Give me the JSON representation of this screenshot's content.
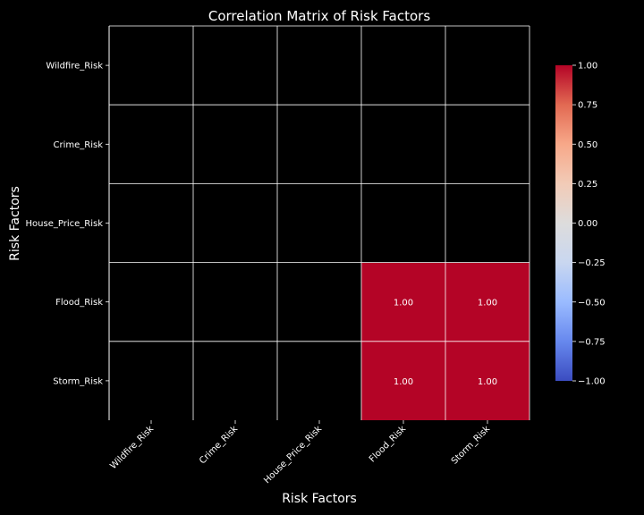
{
  "chart_data": {
    "type": "heatmap",
    "title": "Correlation Matrix of Risk Factors",
    "xlabel": "Risk Factors",
    "ylabel": "Risk Factors",
    "row_labels": [
      "Wildfire_Risk",
      "Crime_Risk",
      "House_Price_Risk",
      "Flood_Risk",
      "Storm_Risk"
    ],
    "col_labels": [
      "Wildfire_Risk",
      "Crime_Risk",
      "House_Price_Risk",
      "Flood_Risk",
      "Storm_Risk"
    ],
    "values": [
      [
        null,
        null,
        null,
        null,
        null
      ],
      [
        null,
        null,
        null,
        null,
        null
      ],
      [
        null,
        null,
        null,
        null,
        null
      ],
      [
        null,
        null,
        null,
        1.0,
        1.0
      ],
      [
        null,
        null,
        null,
        1.0,
        1.0
      ]
    ],
    "annotations": [
      [
        "",
        "",
        "",
        "",
        ""
      ],
      [
        "",
        "",
        "",
        "",
        ""
      ],
      [
        "",
        "",
        "",
        "",
        ""
      ],
      [
        "",
        "",
        "",
        "1.00",
        "1.00"
      ],
      [
        "",
        "",
        "",
        "1.00",
        "1.00"
      ]
    ],
    "colormap": "coolwarm",
    "vmin": -1.0,
    "vmax": 1.0,
    "colorbar_ticks": [
      "1.00",
      "0.75",
      "0.50",
      "0.25",
      "0.00",
      "−0.25",
      "−0.50",
      "−0.75",
      "−1.00"
    ],
    "colorbar_tick_values": [
      1.0,
      0.75,
      0.5,
      0.25,
      0.0,
      -0.25,
      -0.5,
      -0.75,
      -1.0
    ],
    "colors": {
      "background": "#000000",
      "text": "#ffffff",
      "grid": "#ffffff",
      "cmap_low": "#3b4cc0",
      "cmap_mid": "#dddddd",
      "cmap_high": "#b40426"
    }
  }
}
